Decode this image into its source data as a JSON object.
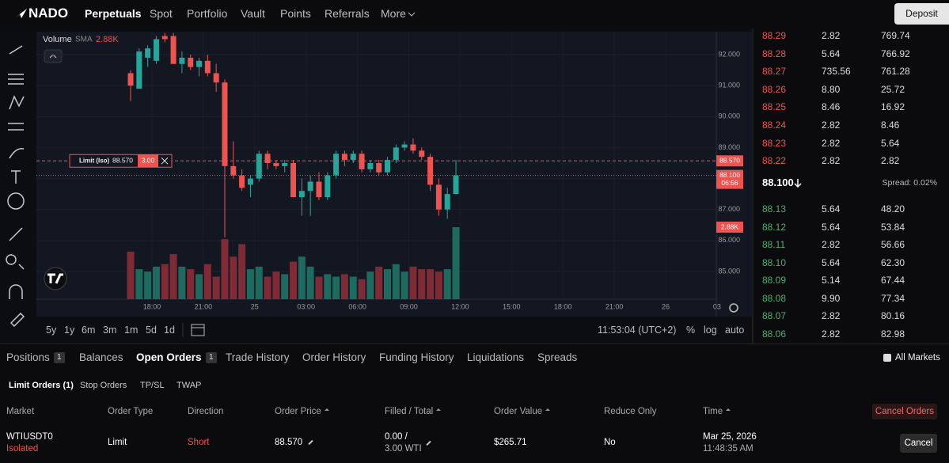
{
  "nav": {
    "brand": "NADO",
    "links": [
      "Perpetuals",
      "Spot",
      "Portfolio",
      "Vault",
      "Points",
      "Referrals",
      "More"
    ],
    "deposit": "Deposit"
  },
  "chart": {
    "type": "candlestick",
    "volume_title": "Volume",
    "volume_sma": "SMA",
    "volume_value": {
      "value": 2.88,
      "label": "2.88K"
    },
    "up_color": "#26a69a",
    "down_color": "#ef5350",
    "up_volume_color": "#1d6b5e",
    "down_volume_color": "#7e2b36",
    "yticks": [
      {
        "value": 92,
        "label": "92.000"
      },
      {
        "value": 91,
        "label": "91.000"
      },
      {
        "value": 90,
        "label": "90.000"
      },
      {
        "value": 89,
        "label": "89.000"
      },
      {
        "value": 88,
        "label": "88.000"
      },
      {
        "value": 87,
        "label": "87.000"
      },
      {
        "value": 86,
        "label": "86.000"
      },
      {
        "value": 85,
        "label": "85.000"
      }
    ],
    "xtick_labels": [
      "18:00",
      "21:00",
      "25",
      "03:00",
      "06:00",
      "09:00",
      "12:00",
      "15:00",
      "18:00",
      "21:00",
      "26",
      "03"
    ],
    "candles": [
      [
        91.4,
        91.5,
        90.5,
        91.0
      ],
      [
        90.9,
        92.2,
        90.9,
        92.1
      ],
      [
        91.9,
        92.3,
        91.6,
        92.2
      ],
      [
        91.8,
        92.6,
        91.7,
        92.5
      ],
      [
        92.6,
        92.7,
        92.4,
        92.5
      ],
      [
        92.6,
        92.7,
        91.7,
        91.7
      ],
      [
        91.7,
        92.1,
        91.4,
        91.9
      ],
      [
        91.9,
        92.0,
        91.5,
        91.6
      ],
      [
        91.6,
        91.9,
        91.3,
        91.8
      ],
      [
        91.8,
        92.0,
        91.3,
        91.4
      ],
      [
        91.4,
        91.7,
        90.8,
        91.1
      ],
      [
        91.1,
        91.2,
        86.1,
        88.4
      ],
      [
        88.4,
        89.2,
        88.0,
        88.1
      ],
      [
        88.1,
        88.3,
        87.6,
        87.7
      ],
      [
        87.8,
        88.1,
        87.4,
        88.0
      ],
      [
        88.0,
        88.9,
        87.9,
        88.8
      ],
      [
        88.8,
        88.9,
        88.3,
        88.5
      ],
      [
        88.5,
        88.6,
        88.3,
        88.4
      ],
      [
        88.4,
        88.6,
        88.2,
        88.5
      ],
      [
        88.5,
        88.6,
        87.4,
        87.4
      ],
      [
        87.4,
        88.0,
        86.8,
        87.6
      ],
      [
        87.6,
        88.1,
        86.8,
        87.9
      ],
      [
        87.9,
        88.2,
        87.3,
        87.4
      ],
      [
        87.4,
        88.2,
        87.3,
        88.1
      ],
      [
        88.1,
        88.9,
        88.0,
        88.8
      ],
      [
        88.8,
        88.9,
        88.4,
        88.6
      ],
      [
        88.6,
        88.9,
        88.5,
        88.8
      ],
      [
        88.8,
        88.9,
        88.2,
        88.3
      ],
      [
        88.3,
        88.6,
        88.2,
        88.5
      ],
      [
        88.5,
        88.6,
        88.1,
        88.2
      ],
      [
        88.2,
        88.7,
        88.1,
        88.6
      ],
      [
        88.6,
        89.1,
        88.5,
        89.0
      ],
      [
        89.0,
        89.2,
        88.9,
        89.1
      ],
      [
        89.1,
        89.3,
        88.8,
        88.9
      ],
      [
        88.9,
        89.0,
        88.6,
        88.7
      ],
      [
        88.7,
        88.8,
        87.6,
        87.8
      ],
      [
        87.8,
        88.0,
        86.8,
        87.0
      ],
      [
        87.0,
        87.7,
        86.7,
        87.5
      ],
      [
        87.5,
        88.6,
        87.5,
        88.1
      ]
    ],
    "volume": [
      1.9,
      1.2,
      1.1,
      1.3,
      1.4,
      1.8,
      1.3,
      1.2,
      1.0,
      1.4,
      0.9,
      2.4,
      1.7,
      2.2,
      1.2,
      1.3,
      0.9,
      1.1,
      1.0,
      1.5,
      1.7,
      1.3,
      0.9,
      1.0,
      0.9,
      1.0,
      0.9,
      0.8,
      1.1,
      1.3,
      1.2,
      1.4,
      1.1,
      1.3,
      1.2,
      1.2,
      1.1,
      1.2,
      2.88
    ],
    "order_line": {
      "label": "Limit (Iso)",
      "price": {
        "value": 88.57,
        "label": "88.570"
      },
      "qty": "3.00"
    },
    "last_price": {
      "value": 88.1,
      "label": "88.100"
    },
    "countdown": "06:56"
  },
  "chart_toolbar": {
    "ranges": [
      "5y",
      "1y",
      "6m",
      "3m",
      "1m",
      "5d",
      "1d"
    ],
    "clock": "11:53:04 (UTC+2)",
    "options": [
      "%",
      "log",
      "auto"
    ]
  },
  "orderbook": {
    "asks": [
      [
        "88.29",
        "2.82",
        "769.74"
      ],
      [
        "88.28",
        "5.64",
        "766.92"
      ],
      [
        "88.27",
        "735.56",
        "761.28"
      ],
      [
        "88.26",
        "8.80",
        "25.72"
      ],
      [
        "88.25",
        "8.46",
        "16.92"
      ],
      [
        "88.24",
        "2.82",
        "8.46"
      ],
      [
        "88.23",
        "2.82",
        "5.64"
      ],
      [
        "88.22",
        "2.82",
        "2.82"
      ]
    ],
    "mid": "88.100",
    "spread": "Spread: 0.02%",
    "bids": [
      [
        "88.13",
        "5.64",
        "48.20"
      ],
      [
        "88.12",
        "5.64",
        "53.84"
      ],
      [
        "88.11",
        "2.82",
        "56.66"
      ],
      [
        "88.10",
        "5.64",
        "62.30"
      ],
      [
        "88.09",
        "5.14",
        "67.44"
      ],
      [
        "88.08",
        "9.90",
        "77.34"
      ],
      [
        "88.07",
        "2.82",
        "80.16"
      ],
      [
        "88.06",
        "2.82",
        "82.98"
      ]
    ]
  },
  "tabs": [
    {
      "label": "Positions",
      "count": "1"
    },
    {
      "label": "Balances"
    },
    {
      "label": "Open Orders",
      "count": "1"
    },
    {
      "label": "Trade History"
    },
    {
      "label": "Order History"
    },
    {
      "label": "Funding History"
    },
    {
      "label": "Liquidations"
    },
    {
      "label": "Spreads"
    }
  ],
  "all_markets": "All Markets",
  "subtabs": [
    "Limit Orders (1)",
    "Stop Orders",
    "TP/SL",
    "TWAP"
  ],
  "table": {
    "headers": [
      "Market",
      "Order Type",
      "Direction",
      "Order Price",
      "Filled / Total",
      "Order Value",
      "Reduce Only",
      "Time"
    ],
    "cancel_all": "Cancel Orders",
    "rows": [
      {
        "market": "WTIUSDT0",
        "margin": "Isolated",
        "type": "Limit",
        "direction": "Short",
        "price": "88.570",
        "filled": "0.00 /",
        "total": "3.00 WTI",
        "value": "$265.71",
        "reduce_only": "No",
        "date": "Mar 25, 2026",
        "time": "11:48:35 AM",
        "action": "Cancel"
      }
    ]
  }
}
